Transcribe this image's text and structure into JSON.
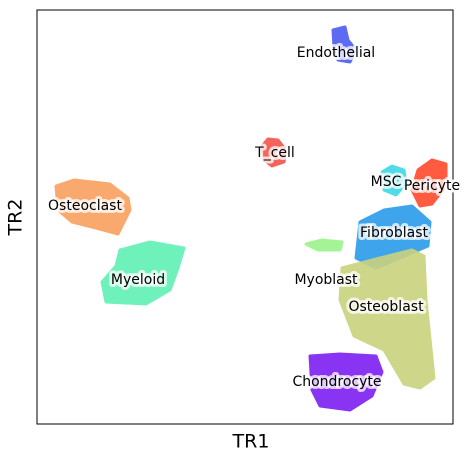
{
  "chart_data": {
    "type": "scatter",
    "xlabel": "TR1",
    "ylabel": "TR2",
    "series": [
      {
        "name": "Endothelial",
        "color": "#4b5cf0"
      },
      {
        "name": "T_cell",
        "color": "#f2544c"
      },
      {
        "name": "MSC",
        "color": "#3fd6e6"
      },
      {
        "name": "Pericyte",
        "color": "#ff4a2c"
      },
      {
        "name": "Osteoclast",
        "color": "#f9a05e"
      },
      {
        "name": "Fibroblast",
        "color": "#2a9be9"
      },
      {
        "name": "Myeloid",
        "color": "#5ff0b4"
      },
      {
        "name": "Myoblast",
        "color": "#9cf28c"
      },
      {
        "name": "Osteoblast",
        "color": "#c9d27e"
      },
      {
        "name": "Chondrocyte",
        "color": "#7d1ff2"
      }
    ]
  }
}
